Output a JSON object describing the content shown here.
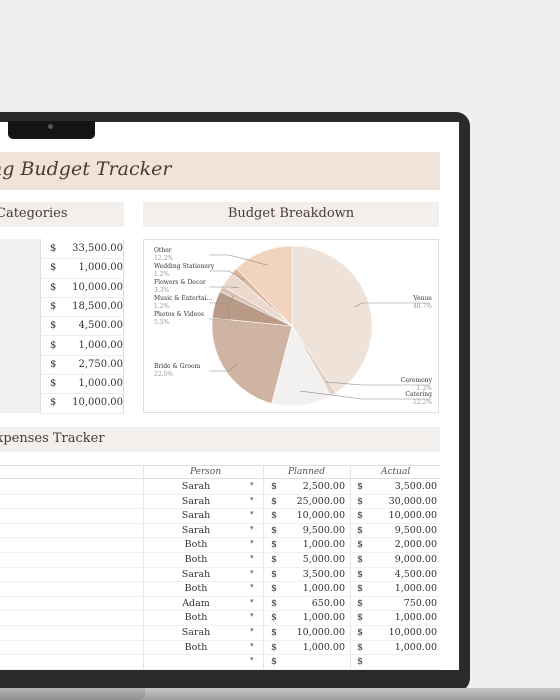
{
  "title": "ng Budget Tracker",
  "categories_header": "Categories",
  "breakdown_header": "Budget Breakdown",
  "expenses_header": "xpenses Tracker",
  "category_amounts": [
    {
      "currency": "$",
      "amount": "33,500.00"
    },
    {
      "currency": "$",
      "amount": "1,000.00"
    },
    {
      "currency": "$",
      "amount": "10,000.00"
    },
    {
      "currency": "$",
      "amount": "18,500.00"
    },
    {
      "currency": "$",
      "amount": "4,500.00"
    },
    {
      "currency": "$",
      "amount": "1,000.00"
    },
    {
      "currency": "$",
      "amount": "2,750.00"
    },
    {
      "currency": "$",
      "amount": "1,000.00"
    },
    {
      "currency": "$",
      "amount": "10,000.00"
    }
  ],
  "chart_data": {
    "type": "pie",
    "title": "Budget Breakdown",
    "slices": [
      {
        "name": "Venue",
        "label": "40.7%",
        "value": 40.7,
        "color": "#eee2d9"
      },
      {
        "name": "Ceremony",
        "label": "1.2%",
        "value": 1.2,
        "color": "#e3d2c6"
      },
      {
        "name": "Catering",
        "label": "12.2%",
        "value": 12.2,
        "color": "#f3f1f0"
      },
      {
        "name": "Bride & Groom",
        "label": "22.5%",
        "value": 22.5,
        "color": "#cfb4a3"
      },
      {
        "name": "Photos & Videos",
        "label": "5.5%",
        "value": 5.5,
        "color": "#b99a86"
      },
      {
        "name": "Music & Entertai…",
        "label": "1.2%",
        "value": 1.2,
        "color": "#d9c3b5"
      },
      {
        "name": "Flowers & Decor",
        "label": "3.3%",
        "value": 3.3,
        "color": "#ead9cd"
      },
      {
        "name": "Wedding Stationery",
        "label": "1.2%",
        "value": 1.2,
        "color": "#ddb59b"
      },
      {
        "name": "Other",
        "label": "12.2%",
        "value": 12.2,
        "color": "#f2d3bd"
      }
    ]
  },
  "expense_columns": {
    "person": "Person",
    "planned": "Planned",
    "actual": "Actual"
  },
  "expenses": [
    {
      "person": "Sarah",
      "planned": "2,500.00",
      "actual": "3,500.00"
    },
    {
      "person": "Sarah",
      "planned": "25,000.00",
      "actual": "30,000.00"
    },
    {
      "person": "Sarah",
      "planned": "10,000.00",
      "actual": "10,000.00"
    },
    {
      "person": "Sarah",
      "planned": "9,500.00",
      "actual": "9,500.00"
    },
    {
      "person": "Both",
      "planned": "1,000.00",
      "actual": "2,000.00"
    },
    {
      "person": "Both",
      "planned": "5,000.00",
      "actual": "9,000.00"
    },
    {
      "person": "Sarah",
      "planned": "3,500.00",
      "actual": "4,500.00"
    },
    {
      "person": "Both",
      "planned": "1,000.00",
      "actual": "1,000.00"
    },
    {
      "person": "Adam",
      "planned": "650.00",
      "actual": "750.00"
    },
    {
      "person": "Both",
      "planned": "1,000.00",
      "actual": "1,000.00"
    },
    {
      "person": "Sarah",
      "planned": "10,000.00",
      "actual": "10,000.00"
    },
    {
      "person": "Both",
      "planned": "1,000.00",
      "actual": "1,000.00"
    },
    {
      "person": "",
      "planned": "",
      "actual": ""
    }
  ],
  "currency_symbol": "$",
  "dropdown_glyph": "▾"
}
